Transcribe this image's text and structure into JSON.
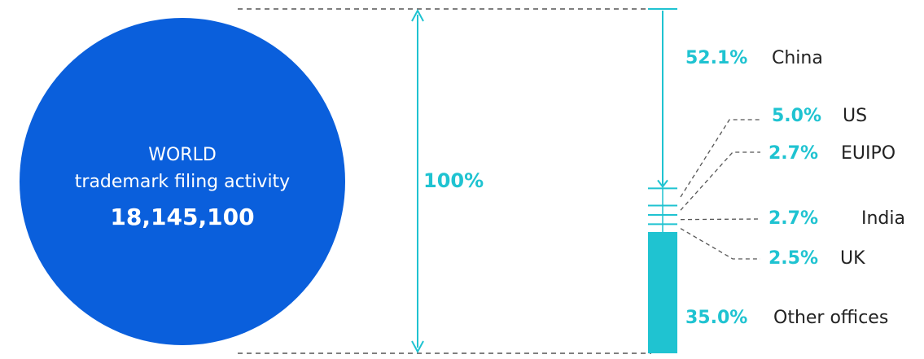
{
  "world": {
    "label": "WORLD",
    "caption": "trademark filing activity",
    "total": "18,145,100",
    "share": "100%"
  },
  "chart_data": {
    "type": "bar",
    "categories": [
      "China",
      "US",
      "EUIPO",
      "India",
      "UK",
      "Other offices"
    ],
    "values": [
      52.1,
      5.0,
      2.7,
      2.7,
      2.5,
      35.0
    ],
    "percent_labels": [
      "52.1%",
      "5.0%",
      "2.7%",
      "2.7%",
      "2.5%",
      "35.0%"
    ],
    "total_label": "100%",
    "unit": "%"
  },
  "colors": {
    "circle": "#0a5fdc",
    "accent": "#1fc3d1",
    "text": "#222222",
    "dash": "#555555"
  }
}
